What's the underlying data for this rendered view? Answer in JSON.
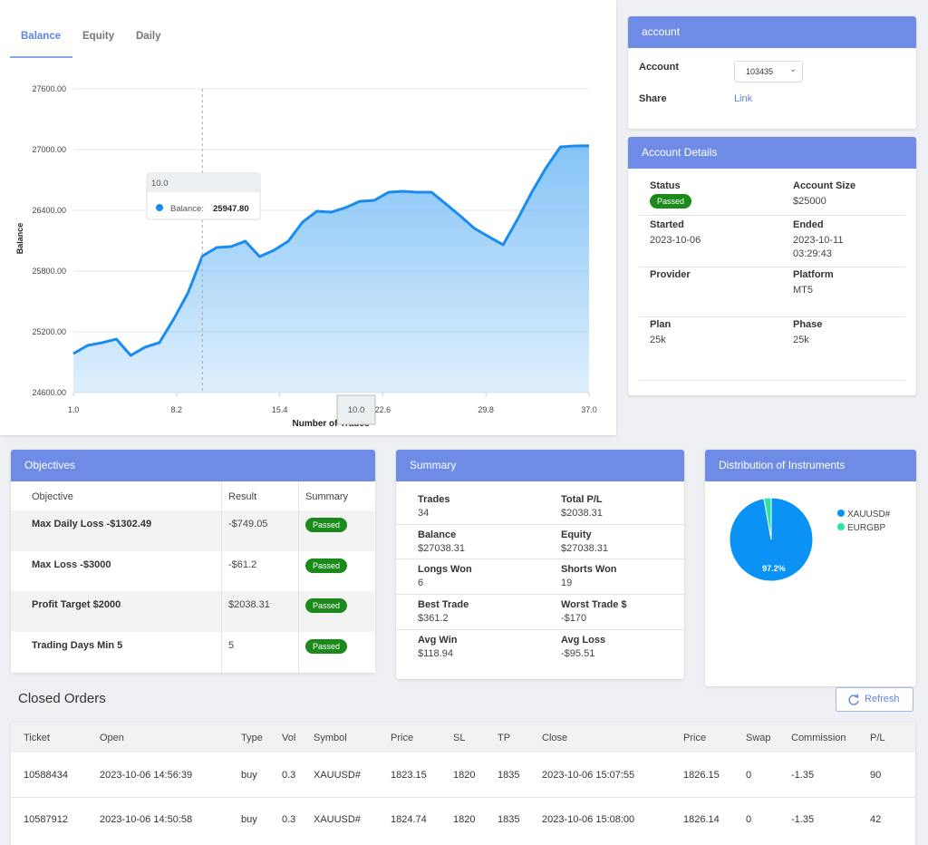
{
  "tabs": [
    "Balance",
    "Equity",
    "Daily"
  ],
  "balance_chart": {
    "type": "line",
    "y_label": "Balance",
    "x_label": "Number of Trades",
    "xlim": [
      1,
      37
    ],
    "xticks": [
      {
        "value": 1,
        "label": "1.0"
      },
      {
        "value": 8.2,
        "label": "8.2"
      },
      {
        "value": 15.4,
        "label": "15.4"
      },
      {
        "value": 22.6,
        "label": "22.6"
      },
      {
        "value": 29.8,
        "label": "29.8"
      },
      {
        "value": 37,
        "label": "37.0"
      }
    ],
    "ylim": [
      24600,
      27600
    ],
    "yticks": [
      {
        "value": 24600,
        "label": "24600.00"
      },
      {
        "value": 25200,
        "label": "25200.00"
      },
      {
        "value": 25800,
        "label": "25800.00"
      },
      {
        "value": 26400,
        "label": "26400.00"
      },
      {
        "value": 27000,
        "label": "27000.00"
      },
      {
        "value": 27600,
        "label": "27600.00"
      }
    ],
    "grid": true,
    "x": [
      1,
      2,
      3,
      4,
      5,
      6,
      7,
      8,
      9,
      10,
      11,
      12,
      13,
      14,
      15,
      16,
      17,
      18,
      19,
      20,
      21,
      22,
      23,
      24,
      25,
      26,
      27,
      28,
      29,
      30,
      31,
      32,
      33,
      34,
      35,
      36,
      37
    ],
    "series": [
      {
        "name": "Balance",
        "color": "#1a8cf0",
        "values": [
          24985,
          25066,
          25093,
          25128,
          24967,
          25048,
          25093,
          25325,
          25585,
          25947.8,
          26033,
          26042,
          26095,
          25943,
          26006,
          26095,
          26284,
          26391,
          26382,
          26427,
          26490,
          26498,
          26579,
          26588,
          26579,
          26579,
          26463,
          26346,
          26221,
          26140,
          26060,
          26310,
          26579,
          26821,
          27027,
          27036,
          27038.31
        ]
      }
    ],
    "tooltip": {
      "x": "10.0",
      "label": "Balance:",
      "value": "25947.80"
    }
  },
  "account": {
    "title": "account",
    "account_label": "Account",
    "account_value": "103435",
    "share_label": "Share",
    "share_value": "Link"
  },
  "account_details": {
    "title": "Account Details",
    "items": [
      {
        "label": "Status",
        "value": "Passed"
      },
      {
        "label": "Account Size",
        "value": "$25000"
      },
      {
        "label": "Started",
        "value": "2023-10-06"
      },
      {
        "label": "Ended",
        "value": "2023-10-11 03:29:43"
      },
      {
        "label": "Provider"
      },
      {
        "label": "Platform",
        "value": "MT5"
      },
      {
        "label": "Plan",
        "value": "25k"
      },
      {
        "label": "Phase",
        "value": "25k"
      }
    ]
  },
  "objectives": {
    "title": "Objectives",
    "columns": [
      "Objective",
      "Result",
      "Summary"
    ],
    "rows": [
      [
        "Max Daily Loss -$1302.49",
        "-$749.05",
        "Passed"
      ],
      [
        "Max Loss -$3000",
        "-$61.2",
        "Passed"
      ],
      [
        "Profit Target $2000",
        "$2038.31",
        "Passed"
      ],
      [
        "Trading Days Min 5",
        "5",
        "Passed"
      ]
    ]
  },
  "summary": {
    "title": "Summary",
    "items": [
      {
        "label": "Trades",
        "value": "34"
      },
      {
        "label": "Total P/L",
        "value": "$2038.31"
      },
      {
        "label": "Balance",
        "value": "$27038.31"
      },
      {
        "label": "Equity",
        "value": "$27038.31"
      },
      {
        "label": "Longs Won",
        "value": "6"
      },
      {
        "label": "Shorts Won",
        "value": "19"
      },
      {
        "label": "Best Trade",
        "value": "$361.2"
      },
      {
        "label": "Worst Trade $",
        "value": "-$170"
      },
      {
        "label": "Avg Win",
        "value": "$118.94"
      },
      {
        "label": "Avg Loss",
        "value": "-$95.51"
      }
    ]
  },
  "distribution": {
    "title": "Distribution of Instruments",
    "chart": {
      "type": "pie",
      "categories": [
        "XAUUSD#",
        "EURGBP"
      ],
      "values": [
        97.2,
        2.8
      ],
      "value_labels": [
        "97.2%",
        null
      ],
      "colors": [
        "#0a93f5",
        "#2ee59d"
      ]
    }
  },
  "closed_orders": {
    "title": "Closed Orders",
    "button": "Refresh",
    "columns": [
      "Ticket",
      "Open",
      "Type",
      "Vol",
      "Symbol",
      "Price",
      "SL",
      "TP",
      "Close",
      "Price",
      "Swap",
      "Commission",
      "P/L"
    ],
    "rows": [
      [
        "10588434",
        "2023-10-06 14:56:39",
        "buy",
        "0.3",
        "XAUUSD#",
        "1823.15",
        "1820",
        "1835",
        "2023-10-06 15:07:55",
        "1826.15",
        "0",
        "-1.35",
        "90"
      ],
      [
        "10587912",
        "2023-10-06 14:50:58",
        "buy",
        "0.3",
        "XAUUSD#",
        "1824.74",
        "1820",
        "1835",
        "2023-10-06 15:08:00",
        "1826.14",
        "0",
        "-1.35",
        "42"
      ]
    ]
  }
}
